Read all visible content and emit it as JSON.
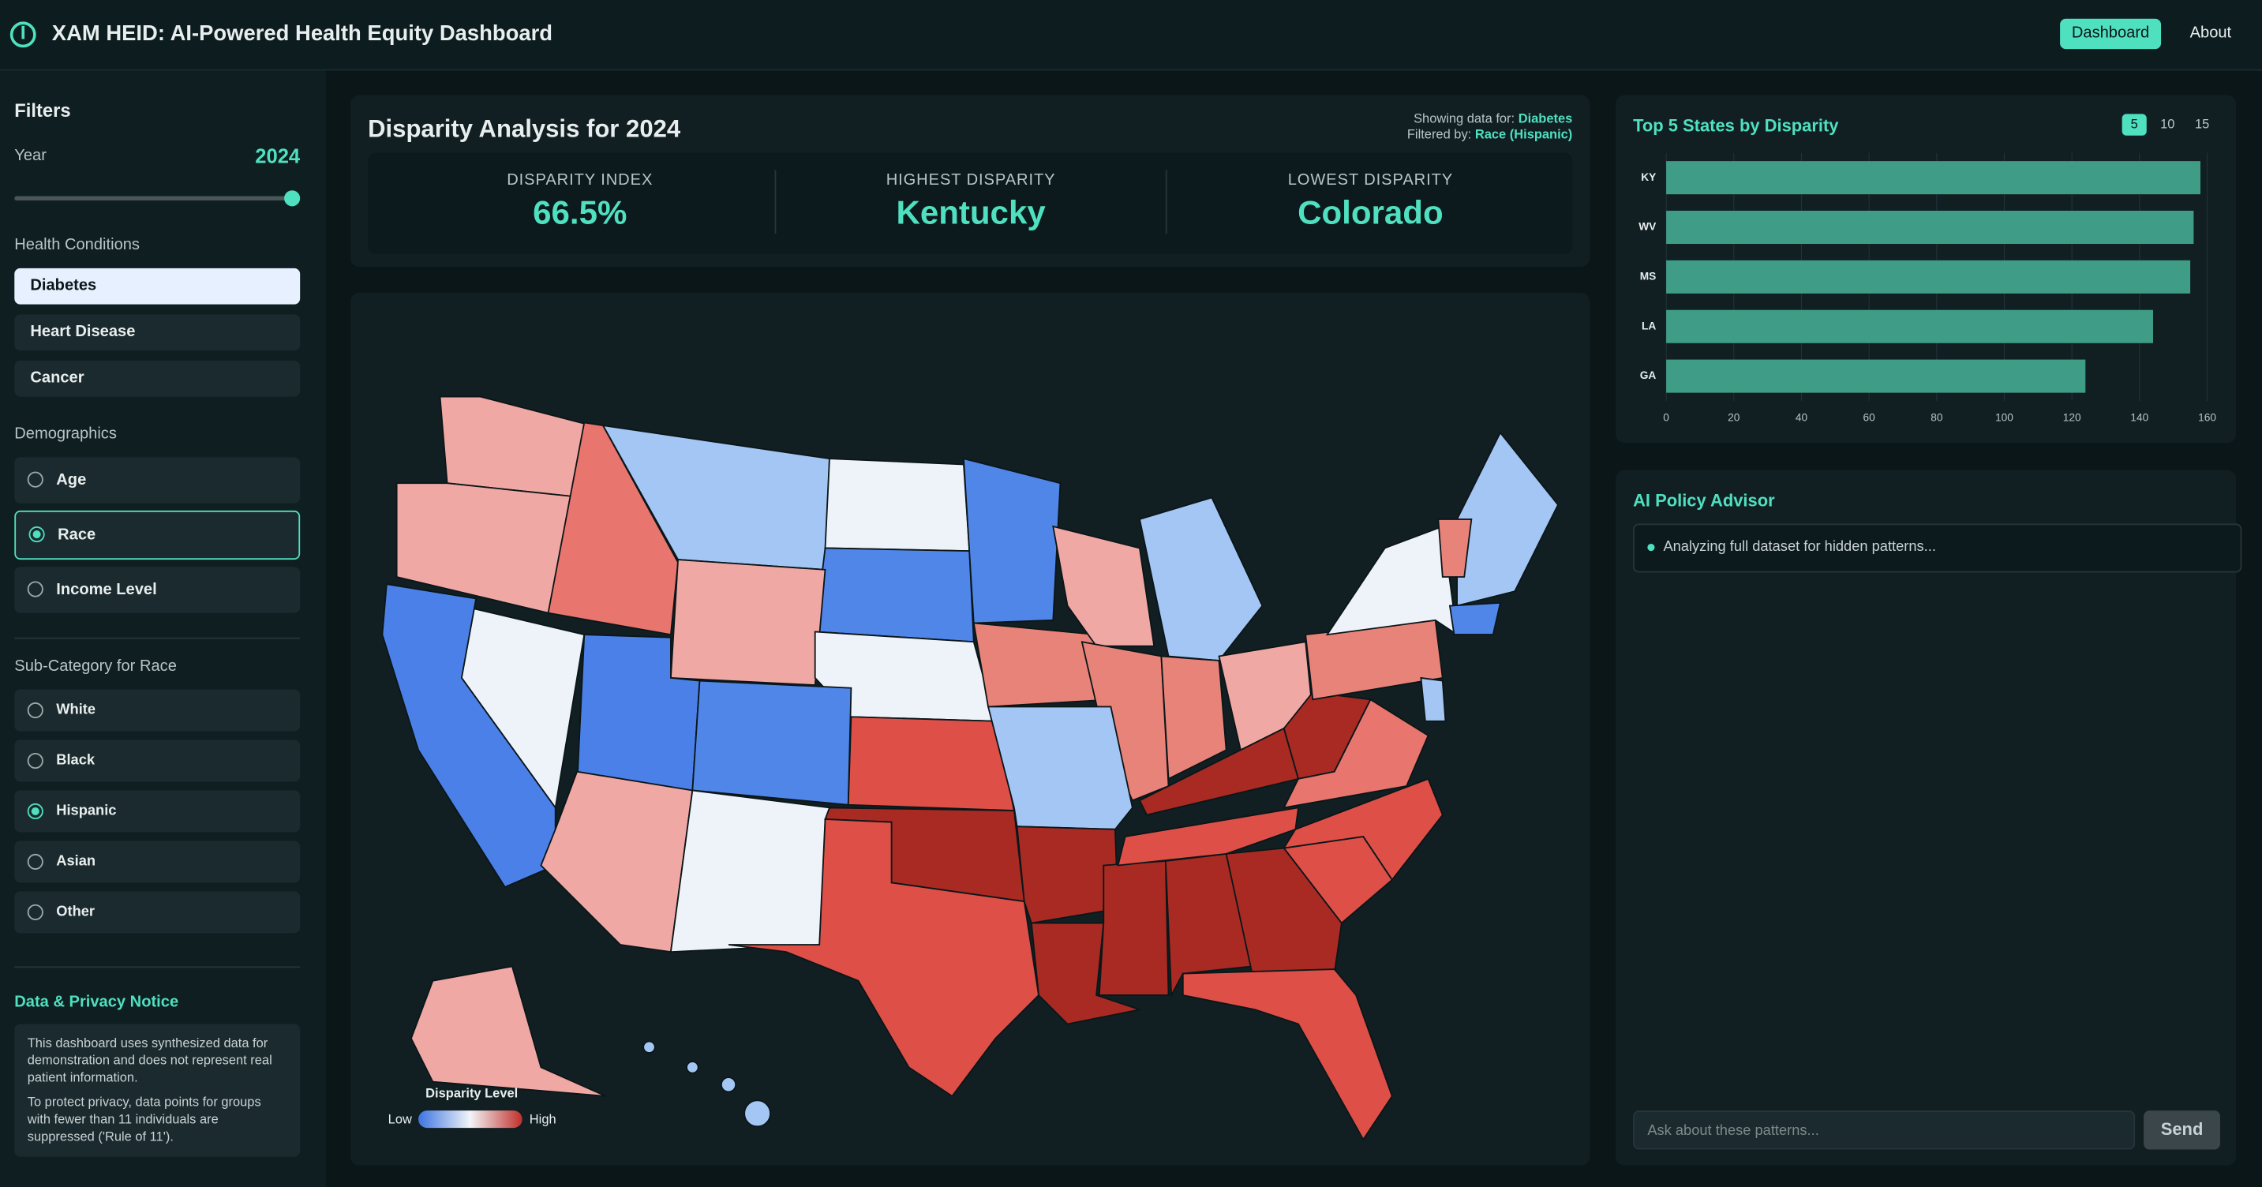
{
  "header": {
    "title": "XAM HEID: AI-Powered Health Equity Dashboard",
    "nav": [
      "Dashboard",
      "About"
    ]
  },
  "filters": {
    "title": "Filters",
    "year_label": "Year",
    "year": 2024,
    "health_conditions_label": "Health Conditions",
    "health_conditions": [
      "Diabetes",
      "Heart Disease",
      "Cancer"
    ],
    "demographics_label": "Demographics",
    "demographics": [
      "Age",
      "Race",
      "Income Level"
    ],
    "subcategory_label": "Sub-Category for Race",
    "subcategories": [
      "White",
      "Black",
      "Hispanic",
      "Asian",
      "Other"
    ]
  },
  "privacy": {
    "title": "Data & Privacy Notice",
    "paragraphs": [
      "This dashboard uses synthesized data for demonstration and does not represent real patient information.",
      "To protect privacy, data points for groups with fewer than 11 individuals are suppressed ('Rule of 11')."
    ]
  },
  "summary": {
    "title": "Disparity Analysis for 2024",
    "showing_label": "Showing data for:",
    "showing_value": "Diabetes",
    "filtered_label": "Filtered by:",
    "filtered_value": "Race (Hispanic)",
    "metrics": [
      {
        "label": "DISPARITY INDEX",
        "value": "66.5%"
      },
      {
        "label": "HIGHEST DISPARITY",
        "value": "Kentucky"
      },
      {
        "label": "LOWEST DISPARITY",
        "value": "Colorado"
      }
    ]
  },
  "map": {
    "legend_title": "Disparity Level",
    "low": "Low",
    "high": "High"
  },
  "chart_data": {
    "type": "bar",
    "orientation": "horizontal",
    "title": "Top 5 States by Disparity",
    "categories": [
      "KY",
      "WV",
      "MS",
      "LA",
      "GA"
    ],
    "values": [
      158,
      156,
      155,
      144,
      124
    ],
    "color": "#3f9c86",
    "xlim": [
      0,
      160
    ],
    "xticks": [
      0,
      20,
      40,
      60,
      80,
      100,
      120,
      140,
      160
    ],
    "grid": true
  },
  "top_options": [
    "5",
    "10",
    "15"
  ],
  "advisor": {
    "title": "AI Policy Advisor",
    "status": "Analyzing full dataset for hidden patterns...",
    "placeholder": "Ask about these patterns...",
    "send": "Send"
  }
}
